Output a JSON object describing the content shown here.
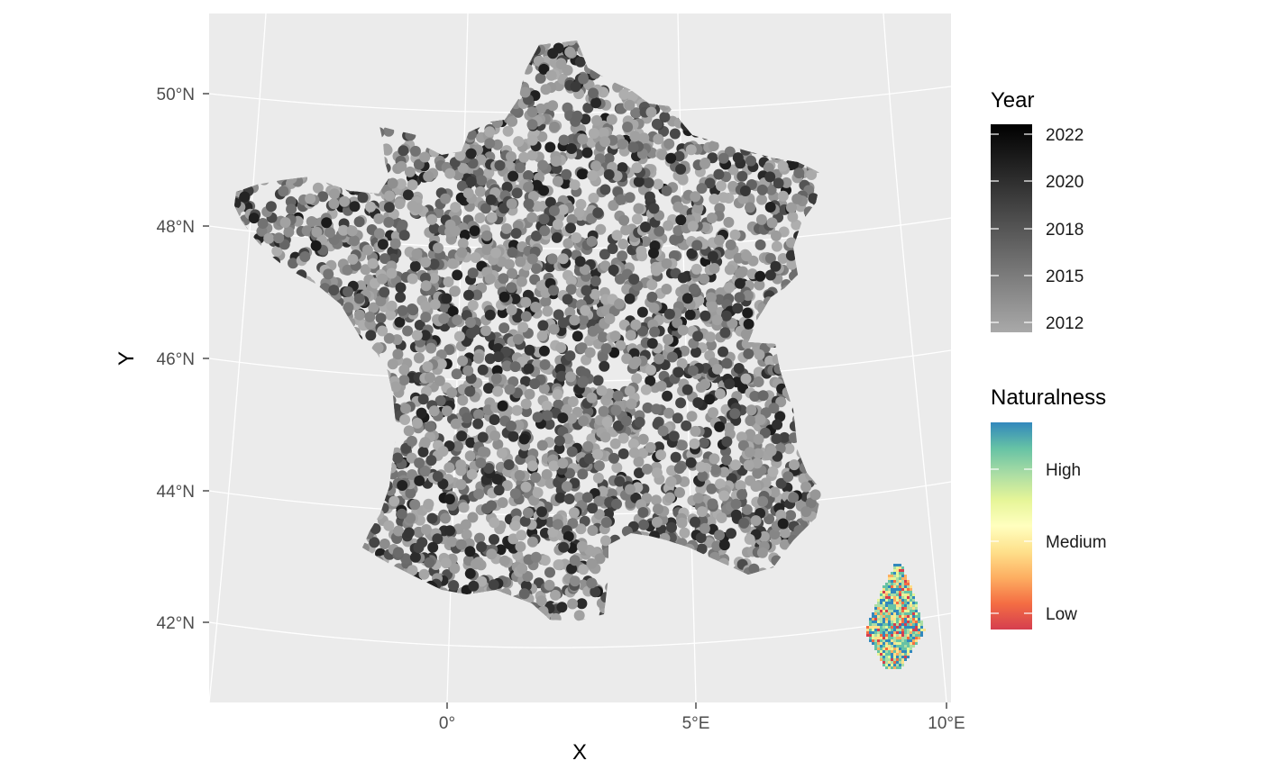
{
  "chart_data": {
    "type": "map",
    "description_type": "point map over projected France with graticule",
    "xlabel": "X",
    "ylabel": "Y",
    "longitude_ticks": [
      "0°",
      "5°E",
      "10°E"
    ],
    "latitude_ticks": [
      "50°N",
      "48°N",
      "46°N",
      "44°N",
      "42°N"
    ],
    "longitude_values": [
      0,
      5,
      10
    ],
    "latitude_values": [
      50,
      48,
      46,
      44,
      42
    ],
    "grid": true,
    "legend_position": "right",
    "legends": [
      {
        "name": "Year",
        "title": "Year",
        "type": "colorbar",
        "labels": [
          "2022",
          "2020",
          "2018",
          "2015",
          "2012"
        ],
        "range": [
          2011,
          2023
        ],
        "low_color": "#a9a9a9",
        "high_color": "#000000"
      },
      {
        "name": "Naturalness",
        "title": "Naturalness",
        "type": "colorbar",
        "labels": [
          "High",
          "Medium",
          "Low"
        ],
        "colors": [
          "#d53e4f",
          "#f46d43",
          "#fdae61",
          "#fee08b",
          "#ffffbf",
          "#e6f598",
          "#abdda4",
          "#66c2a5",
          "#3288bd"
        ]
      }
    ],
    "series": [
      {
        "name": "Year",
        "kind": "points",
        "region": "mainland France",
        "year_range": [
          2011,
          2023
        ]
      },
      {
        "name": "Naturalness",
        "kind": "raster",
        "region": "Corsica",
        "categories": [
          "Low",
          "Medium",
          "High"
        ]
      }
    ]
  },
  "colors": {
    "panel_background": "#ebebeb",
    "grid_line": "#ffffff",
    "tick": "#333333",
    "point_light": "#a9a9a9",
    "point_dark": "#000000"
  }
}
